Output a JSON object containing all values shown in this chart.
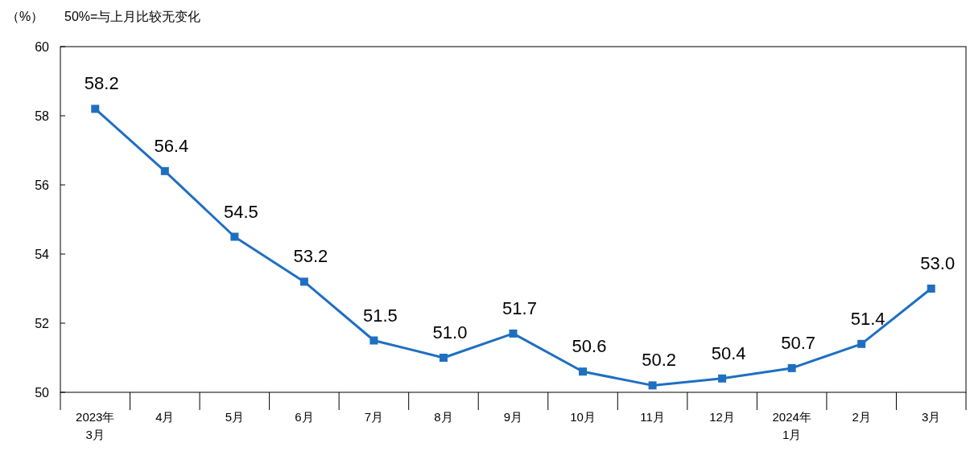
{
  "chart_data": {
    "type": "line",
    "ylabel": "（%）",
    "annotations": [
      "50%=与上月比较无变化"
    ],
    "categories": [
      "2023年 3月",
      "4月",
      "5月",
      "6月",
      "7月",
      "8月",
      "9月",
      "10月",
      "11月",
      "12月",
      "2024年 1月",
      "2月",
      "3月"
    ],
    "values": [
      58.2,
      56.4,
      54.5,
      53.2,
      51.5,
      51.0,
      51.7,
      50.6,
      50.2,
      50.4,
      50.7,
      51.4,
      53.0
    ],
    "color": "#1f6fc1",
    "ylim": [
      50,
      60
    ],
    "yticks": [
      50,
      52,
      54,
      56,
      58,
      60
    ],
    "value_labels": [
      "58.2",
      "56.4",
      "54.5",
      "53.2",
      "51.5",
      "51.0",
      "51.7",
      "50.6",
      "50.2",
      "50.4",
      "50.7",
      "51.4",
      "53.0"
    ],
    "marker": "square",
    "line_style": "solid"
  }
}
